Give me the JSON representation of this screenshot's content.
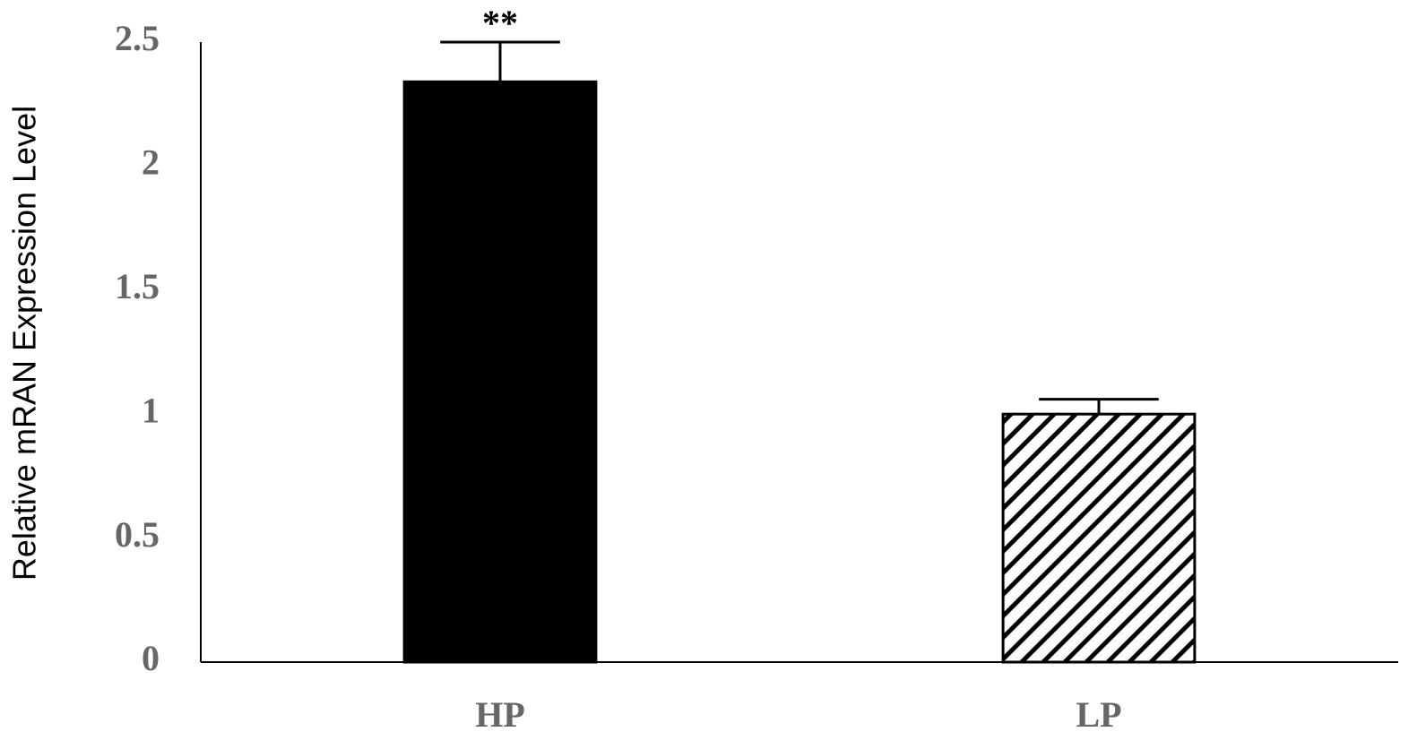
{
  "chart_data": {
    "type": "bar",
    "y_label": "Relative mRAN Expression Level",
    "categories": [
      "HP",
      "LP"
    ],
    "values": [
      2.34,
      1.0
    ],
    "errors": [
      0.16,
      0.06
    ],
    "colors": [
      "#000000",
      "#ffffff"
    ],
    "patterns": [
      "solid",
      "hatch"
    ],
    "annotations": [
      "**",
      null
    ],
    "ylim": [
      0,
      2.5
    ],
    "yticks": [
      0,
      0.5,
      1,
      1.5,
      2,
      2.5
    ],
    "grid": false
  }
}
